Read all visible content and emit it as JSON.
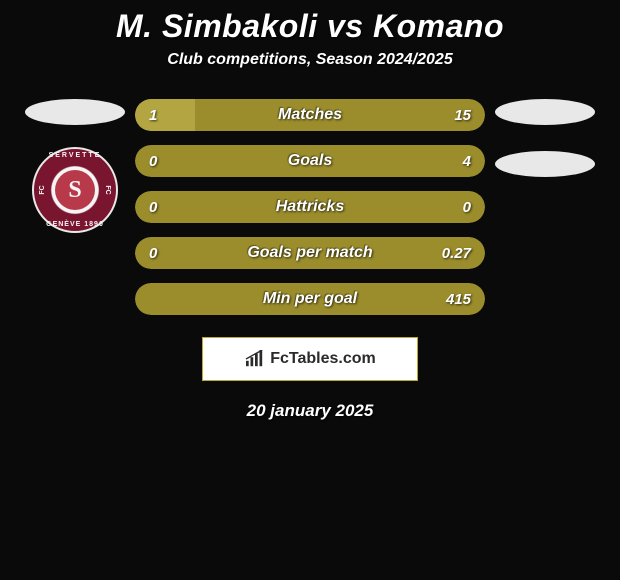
{
  "title": "M. Simbakoli vs Komano",
  "subtitle": "Club competitions, Season 2024/2025",
  "date": "20 january 2025",
  "footer_brand": "FcTables.com",
  "colors": {
    "background": "#0a0a0a",
    "olive": "#9b8d2c",
    "olive_light": "#b3a642",
    "olive_dark": "#7a6f22",
    "avatar_ellipse": "#e8e8e8",
    "club_outer": "#7a1530",
    "club_inner": "#b83a4a",
    "white": "#ffffff"
  },
  "club": {
    "top_text": "SERVETTE",
    "bottom_text": "GENÈVE 1890",
    "side_left": "FC",
    "side_right": "FC",
    "letter": "S"
  },
  "stats": [
    {
      "label": "Matches",
      "left_val": "1",
      "right_val": "15",
      "left_pct": 17,
      "right_pct": 100,
      "bg_color": "#9b8d2c",
      "left_color": "#b3a642",
      "right_color": "#9b8d2c"
    },
    {
      "label": "Goals",
      "left_val": "0",
      "right_val": "4",
      "left_pct": 0,
      "right_pct": 100,
      "bg_color": "#9b8d2c",
      "left_color": "#b3a642",
      "right_color": "#9b8d2c"
    },
    {
      "label": "Hattricks",
      "left_val": "0",
      "right_val": "0",
      "left_pct": 0,
      "right_pct": 0,
      "bg_color": "#9b8d2c",
      "left_color": "#b3a642",
      "right_color": "#9b8d2c"
    },
    {
      "label": "Goals per match",
      "left_val": "0",
      "right_val": "0.27",
      "left_pct": 0,
      "right_pct": 100,
      "bg_color": "#9b8d2c",
      "left_color": "#b3a642",
      "right_color": "#9b8d2c"
    },
    {
      "label": "Min per goal",
      "left_val": "",
      "right_val": "415",
      "left_pct": 0,
      "right_pct": 100,
      "bg_color": "#9b8d2c",
      "left_color": "#b3a642",
      "right_color": "#9b8d2c"
    }
  ]
}
